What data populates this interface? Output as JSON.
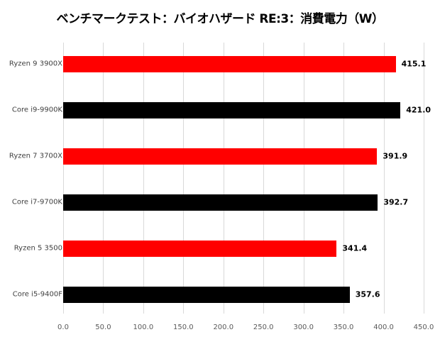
{
  "chart_data": {
    "type": "bar",
    "orientation": "horizontal",
    "title": "ベンチマークテスト：バイオハザード RE:3：消費電力（W）",
    "xlabel": "",
    "ylabel": "",
    "categories": [
      "Ryzen 9 3900X",
      "Core i9-9900K",
      "Ryzen 7 3700X",
      "Core i7-9700K",
      "Ryzen 5 3500",
      "Core i5-9400F"
    ],
    "values": [
      415.1,
      421.0,
      391.9,
      392.7,
      341.4,
      357.6
    ],
    "value_labels": [
      "415.1",
      "421.0",
      "391.9",
      "392.7",
      "341.4",
      "357.6"
    ],
    "bar_colors": [
      "#ff0000",
      "#000000",
      "#ff0000",
      "#000000",
      "#ff0000",
      "#000000"
    ],
    "xlim": [
      0,
      450
    ],
    "x_ticks": [
      "0.0",
      "50.0",
      "100.0",
      "150.0",
      "200.0",
      "250.0",
      "300.0",
      "350.0",
      "400.0",
      "450.0"
    ],
    "grid": true,
    "legend": "none"
  },
  "colors": {
    "amd": "#ff0000",
    "intel": "#000000",
    "grid": "#d9d9d9"
  }
}
